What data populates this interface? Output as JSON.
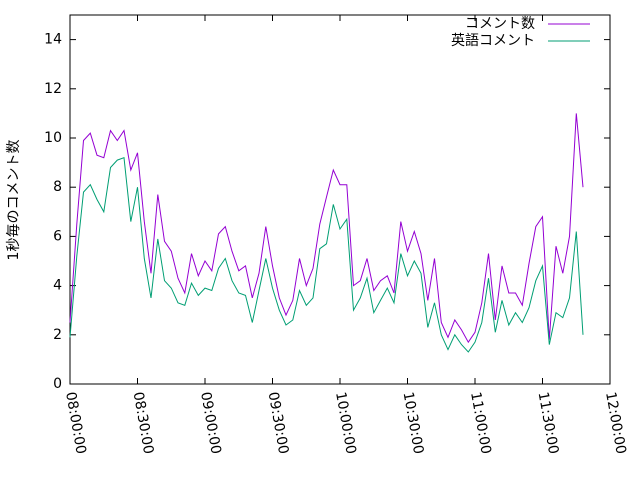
{
  "chart_data": {
    "type": "line",
    "ylabel": "1秒毎のコメント数",
    "x": [
      "08:00:00",
      "08:03:00",
      "08:06:00",
      "08:09:00",
      "08:12:00",
      "08:15:00",
      "08:18:00",
      "08:21:00",
      "08:24:00",
      "08:27:00",
      "08:30:00",
      "08:33:00",
      "08:36:00",
      "08:39:00",
      "08:42:00",
      "08:45:00",
      "08:48:00",
      "08:51:00",
      "08:54:00",
      "08:57:00",
      "09:00:00",
      "09:03:00",
      "09:06:00",
      "09:09:00",
      "09:12:00",
      "09:15:00",
      "09:18:00",
      "09:21:00",
      "09:24:00",
      "09:27:00",
      "09:30:00",
      "09:33:00",
      "09:36:00",
      "09:39:00",
      "09:42:00",
      "09:45:00",
      "09:48:00",
      "09:51:00",
      "09:54:00",
      "09:57:00",
      "10:00:00",
      "10:03:00",
      "10:06:00",
      "10:09:00",
      "10:12:00",
      "10:15:00",
      "10:18:00",
      "10:21:00",
      "10:24:00",
      "10:27:00",
      "10:30:00",
      "10:33:00",
      "10:36:00",
      "10:39:00",
      "10:42:00",
      "10:45:00",
      "10:48:00",
      "10:51:00",
      "10:54:00",
      "10:57:00",
      "11:00:00",
      "11:03:00",
      "11:06:00",
      "11:09:00",
      "11:12:00",
      "11:15:00",
      "11:18:00",
      "11:21:00",
      "11:24:00",
      "11:27:00",
      "11:30:00",
      "11:33:00",
      "11:36:00",
      "11:39:00",
      "11:42:00",
      "11:45:00",
      "11:48:00"
    ],
    "series": [
      {
        "name": "コメント数",
        "color": "#9400d3",
        "values": [
          2.5,
          6.5,
          9.9,
          10.2,
          9.3,
          9.2,
          10.3,
          9.9,
          10.3,
          8.7,
          9.4,
          6.6,
          4.5,
          7.7,
          5.8,
          5.4,
          4.3,
          3.7,
          5.3,
          4.4,
          5.0,
          4.6,
          6.1,
          6.4,
          5.4,
          4.6,
          4.8,
          3.5,
          4.5,
          6.4,
          4.8,
          3.5,
          2.8,
          3.4,
          5.1,
          4.0,
          4.7,
          6.5,
          7.6,
          8.7,
          8.1,
          8.1,
          4.0,
          4.2,
          5.1,
          3.8,
          4.2,
          4.4,
          3.7,
          6.6,
          5.4,
          6.2,
          5.3,
          3.4,
          5.1,
          2.5,
          1.9,
          2.6,
          2.2,
          1.7,
          2.1,
          3.3,
          5.3,
          2.6,
          4.8,
          3.7,
          3.7,
          3.2,
          4.9,
          6.4,
          6.8,
          1.8,
          5.6,
          4.5,
          6.0,
          11.0,
          8.0
        ]
      },
      {
        "name": "英語コメント",
        "color": "#009e73",
        "values": [
          1.9,
          5.2,
          7.8,
          8.1,
          7.5,
          7.0,
          8.8,
          9.1,
          9.2,
          6.6,
          8.0,
          5.1,
          3.5,
          5.9,
          4.2,
          3.9,
          3.3,
          3.2,
          4.1,
          3.6,
          3.9,
          3.8,
          4.7,
          5.1,
          4.2,
          3.7,
          3.6,
          2.5,
          3.8,
          5.1,
          3.9,
          3.0,
          2.4,
          2.6,
          3.8,
          3.2,
          3.5,
          5.5,
          5.7,
          7.3,
          6.3,
          6.7,
          3.0,
          3.5,
          4.3,
          2.9,
          3.4,
          3.9,
          3.3,
          5.3,
          4.4,
          5.0,
          4.5,
          2.3,
          3.3,
          2.0,
          1.4,
          2.0,
          1.6,
          1.3,
          1.7,
          2.5,
          4.3,
          2.1,
          3.4,
          2.4,
          2.9,
          2.5,
          3.1,
          4.2,
          4.8,
          1.6,
          2.9,
          2.7,
          3.5,
          6.2,
          2.0
        ]
      }
    ],
    "xlim": [
      "08:00:00",
      "12:00:00"
    ],
    "xticks": [
      "08:00:00",
      "08:30:00",
      "09:00:00",
      "09:30:00",
      "10:00:00",
      "10:30:00",
      "11:00:00",
      "11:30:00",
      "12:00:00"
    ],
    "ylim": [
      0,
      15
    ],
    "yticks": [
      0,
      2,
      4,
      6,
      8,
      10,
      12,
      14
    ],
    "legend": "top-right"
  }
}
